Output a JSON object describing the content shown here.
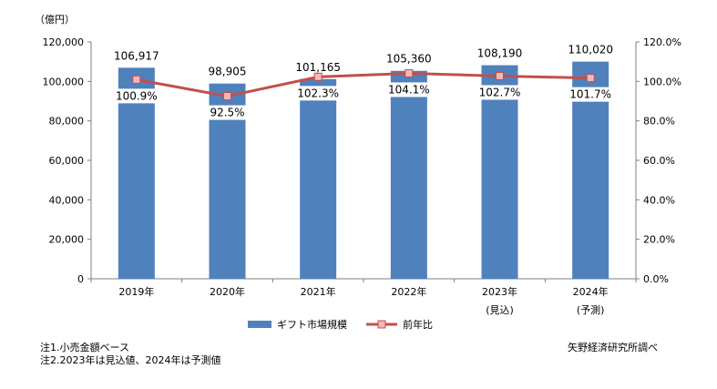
{
  "chart_data": {
    "type": "bar",
    "unit_label": "（億円）",
    "categories": [
      "2019年",
      "2020年",
      "2021年",
      "2022年",
      "2023年",
      "2024年"
    ],
    "category_sublabels": [
      "",
      "",
      "",
      "",
      "(見込)",
      "(予測)"
    ],
    "series": [
      {
        "name": "ギフト市場規模",
        "axis": "left",
        "values": [
          106917,
          98905,
          101165,
          105360,
          108190,
          110020
        ],
        "labels": [
          "106,917",
          "98,905",
          "101,165",
          "105,360",
          "108,190",
          "110,020"
        ],
        "color": "#4f81bd"
      },
      {
        "name": "前年比",
        "axis": "right",
        "type": "line",
        "values": [
          100.9,
          92.5,
          102.3,
          104.1,
          102.7,
          101.7
        ],
        "labels": [
          "100.9%",
          "92.5%",
          "102.3%",
          "104.1%",
          "102.7%",
          "101.7%"
        ],
        "color": "#c0504d",
        "marker_fill": "#f2b8b7"
      }
    ],
    "y_left": {
      "min": 0,
      "max": 120000,
      "ticks": [
        0,
        20000,
        40000,
        60000,
        80000,
        100000,
        120000
      ],
      "tick_labels": [
        "0",
        "20,000",
        "40,000",
        "60,000",
        "80,000",
        "100,000",
        "120,000"
      ]
    },
    "y_right": {
      "min": 0,
      "max": 120,
      "ticks": [
        0,
        20,
        40,
        60,
        80,
        100,
        120
      ],
      "tick_labels": [
        "0.0%",
        "20.0%",
        "40.0%",
        "60.0%",
        "80.0%",
        "100.0%",
        "120.0%"
      ]
    },
    "grid": false,
    "legend_position": "bottom"
  },
  "notes": {
    "note1": "注1.小売金額ベース",
    "note2": "注2.2023年は見込値、2024年は予測値",
    "source": "矢野経済研究所調べ"
  }
}
